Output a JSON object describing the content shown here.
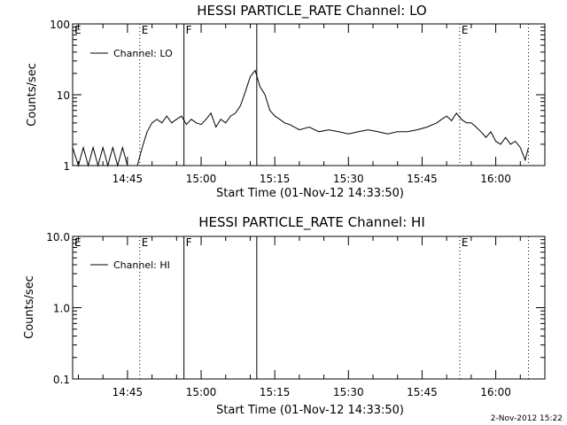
{
  "footer_timestamp": "2-Nov-2012 15:22",
  "chart_data": [
    {
      "type": "line",
      "title": "HESSI PARTICLE_RATE Channel: LO",
      "xlabel": "Start Time (01-Nov-12 14:33:50)",
      "ylabel": "Counts/sec",
      "yscale": "log",
      "ylim": [
        1,
        100
      ],
      "yticks": [
        {
          "value": 1,
          "label": "1"
        },
        {
          "value": 10,
          "label": "10"
        },
        {
          "value": 100,
          "label": "100"
        }
      ],
      "xlim": [
        "14:33:50",
        "16:10:00"
      ],
      "xticks": [
        "14:45",
        "15:00",
        "15:15",
        "15:30",
        "15:45",
        "16:00"
      ],
      "legend": {
        "label": "Channel: LO",
        "position": "top-left"
      },
      "markers": [
        {
          "time": "14:47:30",
          "label": "E",
          "style": "dotted"
        },
        {
          "time": "14:56:30",
          "label": "F",
          "style": "solid"
        },
        {
          "time": "15:11:20",
          "label": "",
          "style": "solid"
        },
        {
          "time": "15:52:40",
          "label": "E",
          "style": "dotted"
        },
        {
          "time": "16:06:40",
          "label": "",
          "style": "dotted"
        }
      ],
      "corner_label": "E",
      "series": [
        {
          "name": "Channel: LO",
          "x": [
            "14:33:50",
            "14:35:00",
            "14:36:00",
            "14:37:00",
            "14:38:00",
            "14:39:00",
            "14:40:00",
            "14:41:00",
            "14:42:00",
            "14:43:00",
            "14:44:00",
            "14:45:00",
            "14:46:00",
            "14:47:00",
            "14:48:00",
            "14:49:00",
            "14:50:00",
            "14:51:00",
            "14:52:00",
            "14:53:00",
            "14:54:00",
            "14:55:00",
            "14:56:00",
            "14:57:00",
            "14:58:00",
            "14:59:00",
            "15:00:00",
            "15:01:00",
            "15:02:00",
            "15:03:00",
            "15:04:00",
            "15:05:00",
            "15:06:00",
            "15:07:00",
            "15:08:00",
            "15:09:00",
            "15:10:00",
            "15:11:00",
            "15:12:00",
            "15:13:00",
            "15:14:00",
            "15:15:00",
            "15:16:00",
            "15:17:00",
            "15:18:00",
            "15:20:00",
            "15:22:00",
            "15:24:00",
            "15:26:00",
            "15:28:00",
            "15:30:00",
            "15:32:00",
            "15:34:00",
            "15:36:00",
            "15:38:00",
            "15:40:00",
            "15:42:00",
            "15:44:00",
            "15:46:00",
            "15:48:00",
            "15:49:00",
            "15:50:00",
            "15:51:00",
            "15:52:00",
            "15:53:00",
            "15:54:00",
            "15:55:00",
            "15:56:00",
            "15:57:00",
            "15:58:00",
            "15:59:00",
            "16:00:00",
            "16:01:00",
            "16:02:00",
            "16:03:00",
            "16:04:00",
            "16:05:00",
            "16:06:00",
            "16:06:40"
          ],
          "y": [
            1.8,
            1,
            1.8,
            1,
            1.8,
            1,
            1.8,
            1,
            1.8,
            1,
            1.8,
            1,
            1,
            1,
            1.8,
            3,
            4,
            4.5,
            4,
            5,
            4,
            4.5,
            5,
            3.8,
            4.5,
            4,
            3.8,
            4.5,
            5.5,
            3.5,
            4.5,
            4,
            5,
            5.5,
            7,
            11,
            18,
            22,
            13,
            10,
            6,
            5,
            4.5,
            4,
            3.8,
            3.2,
            3.5,
            3,
            3.2,
            3,
            2.8,
            3,
            3.2,
            3,
            2.8,
            3,
            3,
            3.2,
            3.5,
            4,
            4.5,
            5,
            4.3,
            5.5,
            4.5,
            4,
            4,
            3.5,
            3,
            2.5,
            3,
            2.2,
            2,
            2.5,
            2,
            2.2,
            1.8,
            1.2,
            1.8
          ]
        }
      ]
    },
    {
      "type": "line",
      "title": "HESSI PARTICLE_RATE Channel: HI",
      "xlabel": "Start Time (01-Nov-12 14:33:50)",
      "ylabel": "Counts/sec",
      "yscale": "log",
      "ylim": [
        0.1,
        10
      ],
      "yticks": [
        {
          "value": 0.1,
          "label": "0.1"
        },
        {
          "value": 1,
          "label": "1.0"
        },
        {
          "value": 10,
          "label": "10.0"
        }
      ],
      "xlim": [
        "14:33:50",
        "16:10:00"
      ],
      "xticks": [
        "14:45",
        "15:00",
        "15:15",
        "15:30",
        "15:45",
        "16:00"
      ],
      "legend": {
        "label": "Channel: HI",
        "position": "top-left"
      },
      "markers": [
        {
          "time": "14:47:30",
          "label": "E",
          "style": "dotted"
        },
        {
          "time": "14:56:30",
          "label": "F",
          "style": "solid"
        },
        {
          "time": "15:11:20",
          "label": "",
          "style": "solid"
        },
        {
          "time": "15:52:40",
          "label": "E",
          "style": "dotted"
        },
        {
          "time": "16:06:40",
          "label": "",
          "style": "dotted"
        }
      ],
      "corner_label": "E",
      "series": [
        {
          "name": "Channel: HI",
          "x": [],
          "y": []
        }
      ]
    }
  ]
}
